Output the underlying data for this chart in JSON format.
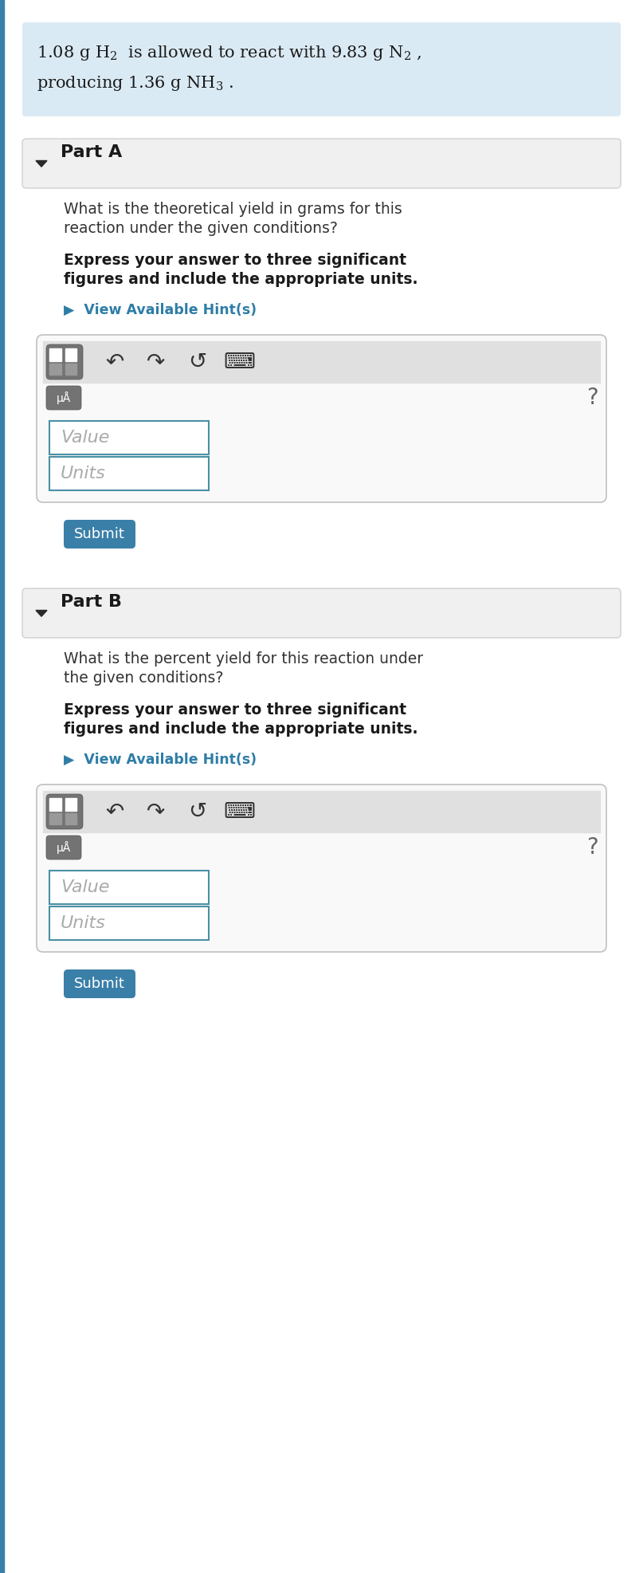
{
  "bg_color": "#ffffff",
  "light_blue_box_color": "#daeaf4",
  "part_header_bg": "#f0f0f0",
  "part_header_border": "#d0d0d0",
  "input_box_border": "#4a90a4",
  "submit_btn_color": "#3a7fa8",
  "submit_btn_text": "#ffffff",
  "hint_color": "#2e7da6",
  "bold_text_color": "#1a1a1a",
  "normal_text_color": "#333333",
  "placeholder_color": "#aaaaaa",
  "toolbar_bg": "#e0e0e0",
  "toolbar_icon_bg": "#737373",
  "partA_label": "Part A",
  "partA_q1": "What is the theoretical yield in grams for this",
  "partA_q2": "reaction under the given conditions?",
  "partA_bold1": "Express your answer to three significant",
  "partA_bold2": "figures and include the appropriate units.",
  "partB_label": "Part B",
  "partB_q1": "What is the percent yield for this reaction under",
  "partB_q2": "the given conditions?",
  "partB_bold1": "Express your answer to three significant",
  "partB_bold2": "figures and include the appropriate units.",
  "hint_text": "▶  View Available Hint(s)",
  "value_placeholder": "Value",
  "units_placeholder": "Units",
  "submit_text": "Submit",
  "question_mark": "?",
  "left_stripe_color": "#3a7fa8",
  "fig_width": 8.07,
  "fig_height": 19.73,
  "dpi": 100
}
